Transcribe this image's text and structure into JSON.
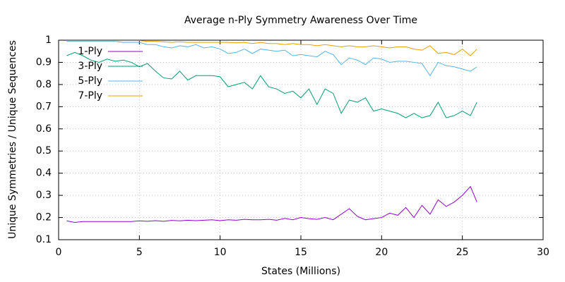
{
  "chart_data": {
    "type": "line",
    "title": "Average n-Ply Symmetry Awareness Over Time",
    "x_label": "States (Millions)",
    "y_label": "Unique Symmetries / Unique Sequences",
    "x": [
      0.5,
      1,
      1.5,
      2,
      2.5,
      3,
      3.5,
      4,
      4.5,
      5,
      5.5,
      6,
      6.5,
      7,
      7.5,
      8,
      8.5,
      9,
      9.5,
      10,
      10.5,
      11,
      11.5,
      12,
      12.5,
      13,
      13.5,
      14,
      14.5,
      15,
      15.5,
      16,
      16.5,
      17,
      17.5,
      18,
      18.5,
      19,
      19.5,
      20,
      20.5,
      21,
      21.5,
      22,
      22.5,
      23,
      23.5,
      24,
      24.5,
      25,
      25.5,
      25.9
    ],
    "series": [
      {
        "name": "1-Ply",
        "color": "#9400d3",
        "values": [
          0.185,
          0.178,
          0.182,
          0.182,
          0.182,
          0.182,
          0.182,
          0.182,
          0.182,
          0.185,
          0.183,
          0.186,
          0.183,
          0.187,
          0.185,
          0.188,
          0.186,
          0.188,
          0.19,
          0.186,
          0.19,
          0.188,
          0.192,
          0.19,
          0.19,
          0.192,
          0.188,
          0.196,
          0.19,
          0.2,
          0.195,
          0.192,
          0.2,
          0.19,
          0.215,
          0.24,
          0.205,
          0.19,
          0.195,
          0.2,
          0.22,
          0.21,
          0.245,
          0.2,
          0.255,
          0.215,
          0.28,
          0.25,
          0.27,
          0.3,
          0.34,
          0.27
        ]
      },
      {
        "name": "3-Ply",
        "color": "#009e73",
        "values": [
          0.93,
          0.945,
          0.93,
          0.91,
          0.9,
          0.915,
          0.905,
          0.91,
          0.9,
          0.88,
          0.895,
          0.86,
          0.83,
          0.825,
          0.86,
          0.82,
          0.84,
          0.84,
          0.84,
          0.835,
          0.79,
          0.8,
          0.81,
          0.78,
          0.84,
          0.79,
          0.78,
          0.76,
          0.77,
          0.74,
          0.78,
          0.71,
          0.78,
          0.76,
          0.67,
          0.73,
          0.72,
          0.74,
          0.68,
          0.69,
          0.68,
          0.67,
          0.65,
          0.67,
          0.65,
          0.66,
          0.72,
          0.65,
          0.66,
          0.68,
          0.66,
          0.72
        ]
      },
      {
        "name": "5-Ply",
        "color": "#56b4e9",
        "values": [
          0.995,
          0.995,
          0.995,
          0.995,
          0.995,
          0.995,
          0.995,
          0.99,
          0.99,
          0.99,
          0.98,
          0.98,
          0.97,
          0.965,
          0.975,
          0.97,
          0.98,
          0.965,
          0.97,
          0.96,
          0.94,
          0.945,
          0.96,
          0.94,
          0.96,
          0.955,
          0.95,
          0.955,
          0.93,
          0.935,
          0.93,
          0.925,
          0.95,
          0.935,
          0.89,
          0.92,
          0.91,
          0.89,
          0.92,
          0.915,
          0.9,
          0.905,
          0.905,
          0.9,
          0.895,
          0.84,
          0.9,
          0.885,
          0.88,
          0.87,
          0.86,
          0.88
        ]
      },
      {
        "name": "7-Ply",
        "color": "#e69f00",
        "values": [
          0.998,
          0.998,
          0.998,
          0.998,
          0.998,
          0.998,
          0.998,
          0.998,
          0.998,
          0.998,
          0.995,
          0.995,
          0.993,
          0.99,
          0.993,
          0.99,
          0.99,
          0.99,
          0.99,
          0.99,
          0.99,
          0.988,
          0.99,
          0.985,
          0.99,
          0.985,
          0.985,
          0.98,
          0.985,
          0.98,
          0.98,
          0.975,
          0.98,
          0.975,
          0.97,
          0.975,
          0.97,
          0.97,
          0.975,
          0.97,
          0.965,
          0.97,
          0.97,
          0.96,
          0.955,
          0.975,
          0.94,
          0.945,
          0.935,
          0.96,
          0.93,
          0.96
        ]
      }
    ],
    "xlim": [
      0,
      30
    ],
    "xticks": [
      0,
      5,
      10,
      15,
      20,
      25,
      30
    ],
    "ylim": [
      0.1,
      1
    ],
    "yticks": [
      0.1,
      0.2,
      0.3,
      0.4,
      0.5,
      0.6,
      0.7,
      0.8,
      0.9,
      1
    ],
    "grid": true,
    "legend": "top-left"
  }
}
